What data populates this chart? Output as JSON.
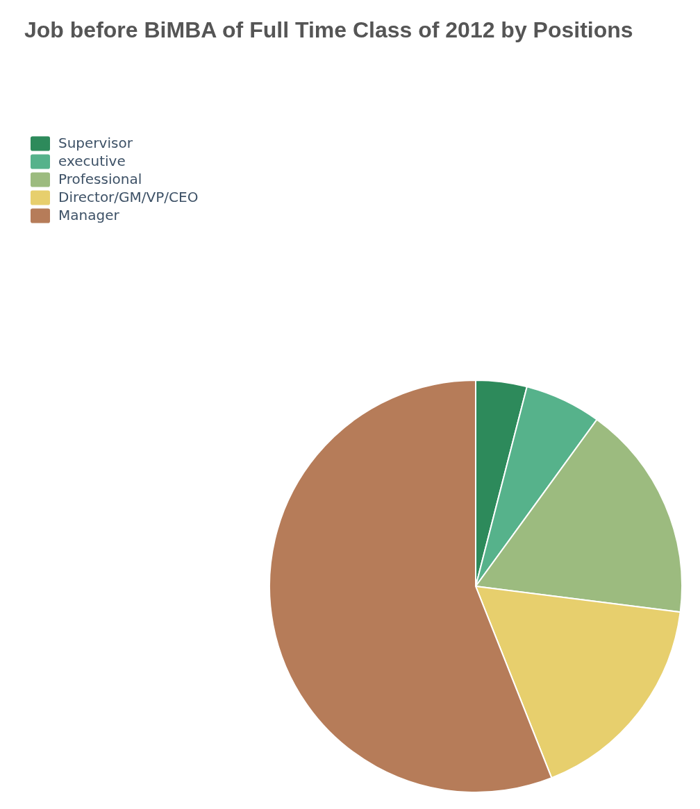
{
  "chart_data": {
    "type": "pie",
    "title": "Job before BiMBA of Full Time Class of 2012 by Positions",
    "categories": [
      "Supervisor",
      "executive",
      "Professional",
      "Director/GM/VP/CEO",
      "Manager"
    ],
    "values": [
      4,
      6,
      17,
      17,
      56
    ],
    "colors": [
      "#2d8a5b",
      "#56b28b",
      "#9cbb7f",
      "#e7cf6d",
      "#b67c59"
    ],
    "legend": "top left"
  }
}
